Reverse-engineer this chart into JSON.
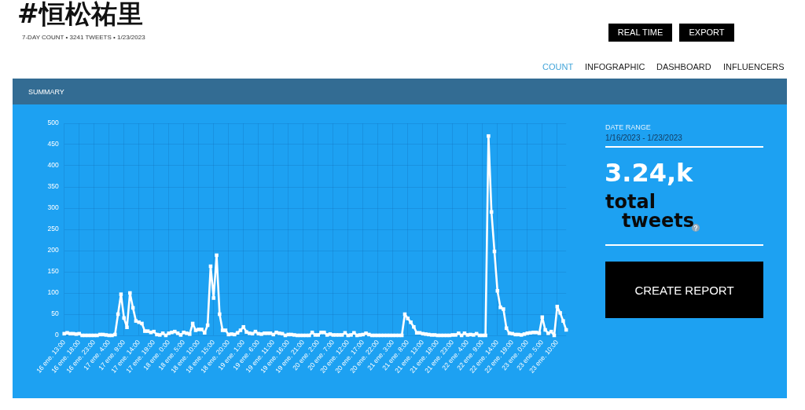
{
  "chart_data": {
    "type": "line",
    "title": "#恒松祐里",
    "subtitle": "7-DAY COUNT • 3241 TWEETS • 1/23/2023",
    "annotations": [
      "REAL TIME",
      "EXPORT",
      "COUNT",
      "INFOGRAPHIC",
      "DASHBOARD",
      "INFLUENCERS",
      "SUMMARY",
      "DATE RANGE",
      "1/16/2023 - 1/23/2023",
      "3.24,k",
      "total tweets",
      "CREATE REPORT"
    ],
    "categories": [
      "16 ene. 13:00",
      null,
      null,
      null,
      null,
      "16 ene. 18:00",
      null,
      null,
      null,
      null,
      "16 ene. 23:00",
      null,
      null,
      null,
      null,
      "17 ene. 4:00",
      null,
      null,
      null,
      null,
      "17 ene. 9:00",
      null,
      null,
      null,
      null,
      "17 ene. 14:00",
      null,
      null,
      null,
      null,
      "17 ene. 19:00",
      null,
      null,
      null,
      null,
      "18 ene. 0:00",
      null,
      null,
      null,
      null,
      "18 ene. 5:00",
      null,
      null,
      null,
      null,
      "18 ene. 10:00",
      null,
      null,
      null,
      null,
      "18 ene. 15:00",
      null,
      null,
      null,
      null,
      "18 ene. 20:00",
      null,
      null,
      null,
      null,
      "19 ene. 1:00",
      null,
      null,
      null,
      null,
      "19 ene. 6:00",
      null,
      null,
      null,
      null,
      "19 ene. 11:00",
      null,
      null,
      null,
      null,
      "19 ene. 16:00",
      null,
      null,
      null,
      null,
      "19 ene. 21:00",
      null,
      null,
      null,
      null,
      "20 ene. 2:00",
      null,
      null,
      null,
      null,
      "20 ene. 7:00",
      null,
      null,
      null,
      null,
      "20 ene. 12:00",
      null,
      null,
      null,
      null,
      "20 ene. 17:00",
      null,
      null,
      null,
      null,
      "20 ene. 22:00",
      null,
      null,
      null,
      null,
      "21 ene. 3:00",
      null,
      null,
      null,
      null,
      "21 ene. 8:00",
      null,
      null,
      null,
      null,
      "21 ene. 13:00",
      null,
      null,
      null,
      null,
      "21 ene. 18:00",
      null,
      null,
      null,
      null,
      "21 ene. 23:00",
      null,
      null,
      null,
      null,
      "22 ene. 4:00",
      null,
      null,
      null,
      null,
      "22 ene. 9:00",
      null,
      null,
      null,
      null,
      "22 ene. 14:00",
      null,
      null,
      null,
      null,
      "22 ene. 19:00",
      null,
      null,
      null,
      null,
      "23 ene. 0:00",
      null,
      null,
      null,
      null,
      "23 ene. 5:00",
      null,
      null,
      null,
      null,
      "23 ene. 10:00",
      null,
      null,
      null
    ],
    "values": [
      4,
      6,
      4,
      4,
      3,
      4,
      0,
      0,
      0,
      0,
      0,
      0,
      2,
      2,
      1,
      0,
      0,
      2,
      50,
      97,
      41,
      19,
      100,
      65,
      34,
      31,
      28,
      10,
      10,
      7,
      9,
      2,
      1,
      5,
      0,
      5,
      7,
      9,
      5,
      1,
      7,
      5,
      3,
      28,
      12,
      14,
      14,
      6,
      24,
      163,
      88,
      189,
      50,
      12,
      12,
      2,
      3,
      2,
      6,
      12,
      20,
      8,
      5,
      4,
      9,
      4,
      3,
      5,
      5,
      5,
      2,
      7,
      5,
      4,
      0,
      2,
      2,
      1,
      0,
      0,
      0,
      0,
      0,
      7,
      1,
      1,
      7,
      7,
      1,
      3,
      1,
      1,
      1,
      1,
      6,
      0,
      1,
      6,
      0,
      1,
      2,
      5,
      2,
      0,
      0,
      0,
      0,
      0,
      0,
      0,
      0,
      0,
      0,
      0,
      50,
      40,
      31,
      20,
      6,
      6,
      4,
      3,
      2,
      1,
      1,
      0,
      0,
      0,
      0,
      0,
      1,
      1,
      5,
      0,
      5,
      1,
      2,
      1,
      4,
      0,
      0,
      0,
      470,
      291,
      198,
      105,
      66,
      62,
      17,
      5,
      4,
      2,
      2,
      1,
      3,
      5,
      6,
      7,
      7,
      5,
      43,
      13,
      5,
      9,
      0,
      68,
      53,
      34,
      13
    ],
    "color": "#ffffff",
    "ylim": [
      0,
      500
    ],
    "yticks": [
      0,
      50,
      100,
      150,
      200,
      250,
      300,
      350,
      400,
      450,
      500
    ],
    "grid": true,
    "marker": "square",
    "line_style": "solid"
  }
}
